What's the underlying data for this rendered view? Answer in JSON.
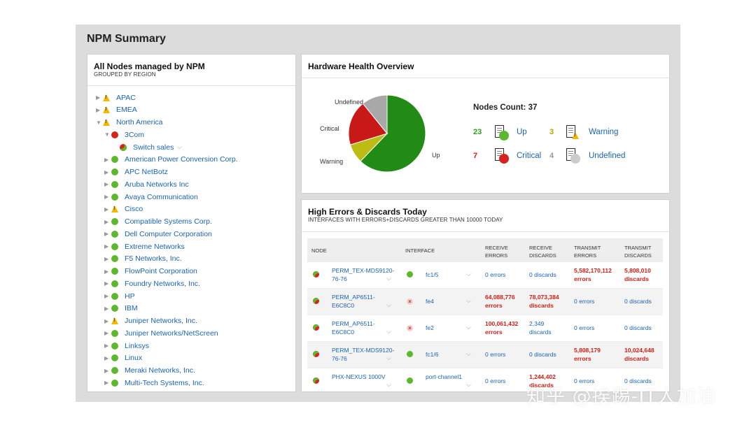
{
  "page_title": "NPM Summary",
  "nodes_panel": {
    "title": "All Nodes managed by NPM",
    "subtitle": "GROUPED BY REGION",
    "items": [
      {
        "label": "APAC",
        "status": "warning",
        "indent": 0,
        "expander": "collapsed"
      },
      {
        "label": "EMEA",
        "status": "warning",
        "indent": 0,
        "expander": "collapsed"
      },
      {
        "label": "North America",
        "status": "warning",
        "indent": 0,
        "expander": "expanded"
      },
      {
        "label": "3Com",
        "status": "down",
        "indent": 1,
        "expander": "expanded"
      },
      {
        "label": "Switch sales",
        "status": "down-partial",
        "indent": 2,
        "expander": "none"
      },
      {
        "label": "American Power Conversion Corp.",
        "status": "up",
        "indent": 1,
        "expander": "collapsed"
      },
      {
        "label": "APC NetBotz",
        "status": "up",
        "indent": 1,
        "expander": "collapsed"
      },
      {
        "label": "Aruba Networks Inc",
        "status": "up",
        "indent": 1,
        "expander": "collapsed"
      },
      {
        "label": "Avaya Communication",
        "status": "up",
        "indent": 1,
        "expander": "collapsed"
      },
      {
        "label": "Cisco",
        "status": "warning",
        "indent": 1,
        "expander": "collapsed"
      },
      {
        "label": "Compatible Systems Corp.",
        "status": "up",
        "indent": 1,
        "expander": "collapsed"
      },
      {
        "label": "Dell Computer Corporation",
        "status": "up",
        "indent": 1,
        "expander": "collapsed"
      },
      {
        "label": "Extreme Networks",
        "status": "up",
        "indent": 1,
        "expander": "collapsed"
      },
      {
        "label": "F5 Networks, Inc.",
        "status": "up",
        "indent": 1,
        "expander": "collapsed"
      },
      {
        "label": "FlowPoint Corporation",
        "status": "up",
        "indent": 1,
        "expander": "collapsed"
      },
      {
        "label": "Foundry Networks, Inc.",
        "status": "up",
        "indent": 1,
        "expander": "collapsed"
      },
      {
        "label": "HP",
        "status": "up",
        "indent": 1,
        "expander": "collapsed"
      },
      {
        "label": "IBM",
        "status": "up",
        "indent": 1,
        "expander": "collapsed"
      },
      {
        "label": "Juniper Networks, Inc.",
        "status": "warning",
        "indent": 1,
        "expander": "collapsed"
      },
      {
        "label": "Juniper Networks/NetScreen",
        "status": "up",
        "indent": 1,
        "expander": "collapsed"
      },
      {
        "label": "Linksys",
        "status": "up",
        "indent": 1,
        "expander": "collapsed"
      },
      {
        "label": "Linux",
        "status": "up",
        "indent": 1,
        "expander": "collapsed"
      },
      {
        "label": "Meraki Networks, Inc.",
        "status": "up",
        "indent": 1,
        "expander": "collapsed"
      },
      {
        "label": "Multi-Tech Systems, Inc.",
        "status": "up",
        "indent": 1,
        "expander": "collapsed"
      }
    ]
  },
  "hardware_panel": {
    "title": "Hardware Health Overview",
    "nodes_count_label": "Nodes Count: 37",
    "pie_labels": {
      "undefined": "Undefined",
      "critical": "Critical",
      "warning": "Warning",
      "up": "Up"
    },
    "stats": [
      {
        "count": "23",
        "label": "Up",
        "color": "#2e9e1e",
        "badge": "#5cb82e"
      },
      {
        "count": "3",
        "label": "Warning",
        "color": "#b9a300",
        "badge": "#f2b800"
      },
      {
        "count": "7",
        "label": "Critical",
        "color": "#d21e14",
        "badge": "#d8231c"
      },
      {
        "count": "4",
        "label": "Undefined",
        "color": "#999999",
        "badge": "#cccccc"
      }
    ],
    "chart_data": {
      "type": "pie",
      "categories": [
        "Up",
        "Warning",
        "Critical",
        "Undefined"
      ],
      "values": [
        23,
        3,
        7,
        4
      ],
      "colors": [
        "#228b16",
        "#bcbc14",
        "#c81818",
        "#a8a8a8"
      ]
    }
  },
  "errors_panel": {
    "title": "High Errors & Discards Today",
    "subtitle": "INTERFACES WITH ERRORS+DISCARDS GREATER THAN 10000 TODAY",
    "columns": {
      "node": "NODE",
      "interface": "INTERFACE",
      "receive_errors": [
        "RECEIVE",
        "ERRORS"
      ],
      "receive_discards": [
        "RECEIVE",
        "DISCARDS"
      ],
      "transmit_errors": [
        "TRANSMIT",
        "ERRORS"
      ],
      "transmit_discards": [
        "TRANSMIT",
        "DISCARDS"
      ]
    },
    "rows": [
      {
        "node": [
          "PERM_TEX-MDS9120-",
          "76-76"
        ],
        "iface": "fc1/5",
        "iface_status": "up",
        "rx_err": [
          "0 errors"
        ],
        "rx_err_hi": false,
        "rx_disc": [
          "0 discards"
        ],
        "rx_disc_hi": false,
        "tx_err": [
          "5,582,170,112",
          "errors"
        ],
        "tx_err_hi": true,
        "tx_disc": [
          "5,808,010",
          "discards"
        ],
        "tx_disc_hi": true
      },
      {
        "node": [
          "PERM_AP6511-",
          "E6C8C0"
        ],
        "iface": "fe4",
        "iface_status": "down",
        "rx_err": [
          "64,088,776",
          "errors"
        ],
        "rx_err_hi": true,
        "rx_disc": [
          "78,073,384",
          "discards"
        ],
        "rx_disc_hi": true,
        "tx_err": [
          "0 errors"
        ],
        "tx_err_hi": false,
        "tx_disc": [
          "0 discards"
        ],
        "tx_disc_hi": false
      },
      {
        "node": [
          "PERM_AP6511-",
          "E6C8C0"
        ],
        "iface": "fe2",
        "iface_status": "down",
        "rx_err": [
          "100,061,432",
          "errors"
        ],
        "rx_err_hi": true,
        "rx_disc": [
          "2,349",
          "discards"
        ],
        "rx_disc_hi": false,
        "tx_err": [
          "0 errors"
        ],
        "tx_err_hi": false,
        "tx_disc": [
          "0 discards"
        ],
        "tx_disc_hi": false
      },
      {
        "node": [
          "PERM_TEX-MDS9120-",
          "76-76"
        ],
        "iface": "fc1/6",
        "iface_status": "up",
        "rx_err": [
          "0 errors"
        ],
        "rx_err_hi": false,
        "rx_disc": [
          "0 discards"
        ],
        "rx_disc_hi": false,
        "tx_err": [
          "5,808,179",
          "errors"
        ],
        "tx_err_hi": true,
        "tx_disc": [
          "10,024,648",
          "discards"
        ],
        "tx_disc_hi": true
      },
      {
        "node": [
          "PHX-NEXUS 1000V"
        ],
        "iface": "port-channel1",
        "iface_status": "up",
        "rx_err": [
          "0 errors"
        ],
        "rx_err_hi": false,
        "rx_disc": [
          "1,244,402",
          "discards"
        ],
        "rx_disc_hi": true,
        "tx_err": [
          "0 errors"
        ],
        "tx_err_hi": false,
        "tx_disc": [
          "0 discards"
        ],
        "tx_disc_hi": false
      }
    ]
  },
  "watermark": "知乎 @挨踢-IT人加油"
}
